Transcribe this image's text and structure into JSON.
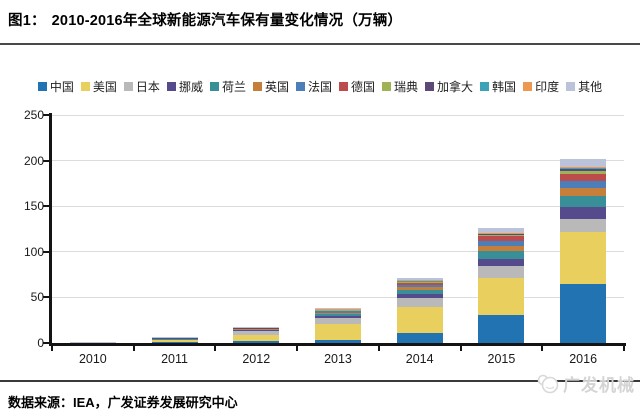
{
  "figure": {
    "label": "图1：",
    "title": "2010-2016年全球新能源汽车保有量变化情况（万辆）"
  },
  "source_note": "数据来源：IEA，广发证券发展研究中心",
  "watermark": "广发机械",
  "chart_data": {
    "type": "bar",
    "stacked": true,
    "title": "2010-2016年全球新能源汽车保有量变化情况（万辆）",
    "categories": [
      "2010",
      "2011",
      "2012",
      "2013",
      "2014",
      "2015",
      "2016"
    ],
    "series": [
      {
        "name": "中国",
        "color": "#2173B2",
        "values": [
          0.2,
          0.7,
          1.7,
          3.2,
          10.5,
          31.2,
          64.9
        ]
      },
      {
        "name": "美国",
        "color": "#E8CF5E",
        "values": [
          0.4,
          2.1,
          7.5,
          17.2,
          29.0,
          40.4,
          56.3
        ]
      },
      {
        "name": "日本",
        "color": "#B9B9B9",
        "values": [
          0.3,
          1.6,
          4.0,
          7.0,
          10.2,
          12.6,
          15.1
        ]
      },
      {
        "name": "挪威",
        "color": "#544A8C",
        "values": [
          0.1,
          0.4,
          1.0,
          2.1,
          4.4,
          8.4,
          13.3
        ]
      },
      {
        "name": "荷兰",
        "color": "#398F98",
        "values": [
          0.0,
          0.1,
          0.7,
          2.9,
          4.4,
          8.8,
          11.3
        ]
      },
      {
        "name": "英国",
        "color": "#C67E3B",
        "values": [
          0.0,
          0.2,
          0.4,
          0.9,
          2.4,
          5.0,
          8.6
        ]
      },
      {
        "name": "法国",
        "color": "#4C7FBA",
        "values": [
          0.0,
          0.3,
          0.8,
          1.8,
          3.1,
          5.4,
          8.4
        ]
      },
      {
        "name": "德国",
        "color": "#BC4B4B",
        "values": [
          0.0,
          0.2,
          0.4,
          1.0,
          2.5,
          5.0,
          7.3
        ]
      },
      {
        "name": "瑞典",
        "color": "#9FB254",
        "values": [
          0.0,
          0.0,
          0.1,
          0.2,
          0.7,
          1.6,
          3.0
        ]
      },
      {
        "name": "加拿大",
        "color": "#5C4977",
        "values": [
          0.0,
          0.1,
          0.3,
          0.5,
          1.1,
          1.8,
          2.9
        ]
      },
      {
        "name": "韩国",
        "color": "#3BA3B5",
        "values": [
          0.0,
          0.0,
          0.0,
          0.1,
          0.1,
          0.4,
          1.1
        ]
      },
      {
        "name": "印度",
        "color": "#EC9850",
        "values": [
          0.0,
          0.0,
          0.1,
          0.1,
          0.3,
          0.4,
          0.5
        ]
      },
      {
        "name": "其他",
        "color": "#BAC3DA",
        "values": [
          0.1,
          0.4,
          0.9,
          1.1,
          2.3,
          5.0,
          9.3
        ]
      }
    ],
    "xlabel": "",
    "ylabel": "",
    "ylim": [
      0,
      250
    ],
    "yticks": [
      0,
      50,
      100,
      150,
      200,
      250
    ],
    "grid": true,
    "legend_position": "top"
  }
}
